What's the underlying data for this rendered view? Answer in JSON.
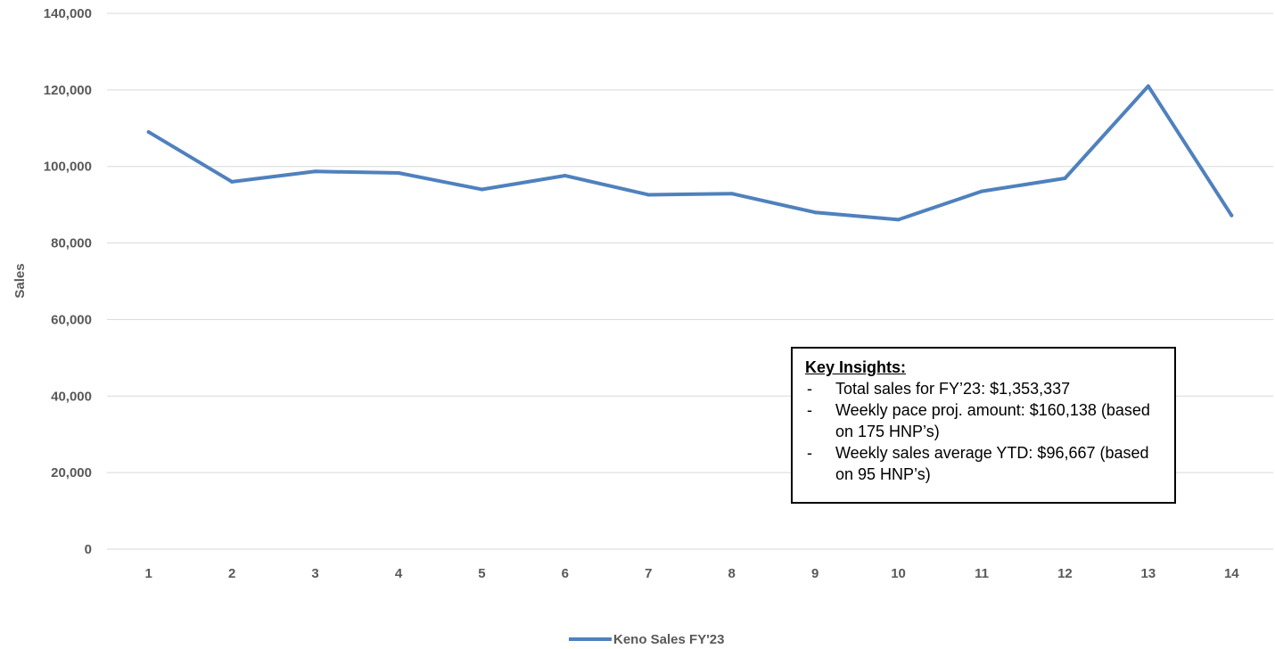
{
  "chart_data": {
    "type": "line",
    "title": "",
    "xlabel": "",
    "ylabel": "Sales",
    "categories": [
      "1",
      "2",
      "3",
      "4",
      "5",
      "6",
      "7",
      "8",
      "9",
      "10",
      "11",
      "12",
      "13",
      "14"
    ],
    "ylim": [
      0,
      140000
    ],
    "yticks": [
      "0",
      "20,000",
      "40,000",
      "60,000",
      "80,000",
      "100,000",
      "120,000",
      "140,000"
    ],
    "grid": true,
    "legend_position": "bottom",
    "series": [
      {
        "name": "Keno Sales FY'23",
        "color": "#4F81BD",
        "values": [
          109000,
          96000,
          98700,
          98300,
          94000,
          97600,
          92600,
          92900,
          88000,
          86100,
          93500,
          96900,
          121000,
          87200
        ]
      }
    ]
  },
  "insights": {
    "title": "Key Insights:",
    "dash": "-",
    "items": [
      "Total sales for FY’23: $1,353,337",
      "Weekly pace proj. amount: $160,138 (based on 175 HNP’s)",
      "Weekly sales average YTD: $96,667 (based on 95 HNP’s)"
    ]
  }
}
